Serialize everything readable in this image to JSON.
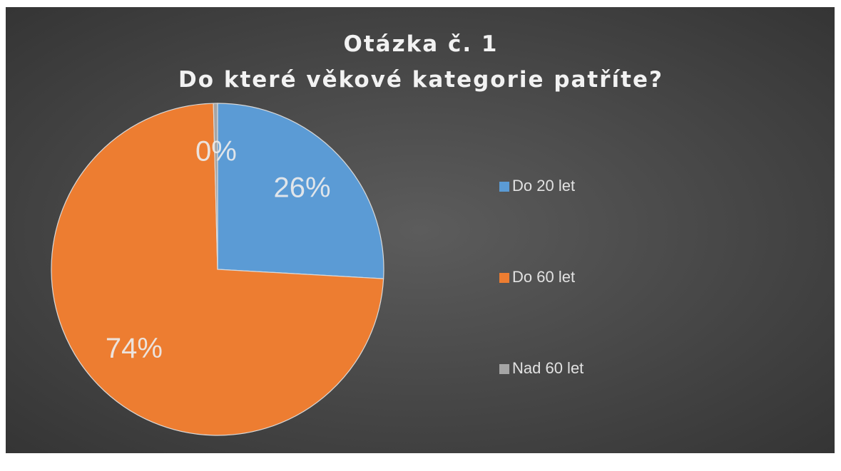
{
  "chart_data": {
    "type": "pie",
    "title": "Otázka č. 1",
    "subtitle": "Do které věkové kategorie patříte?",
    "categories": [
      "Do 20 let",
      "Do 60 let",
      "Nad 60 let"
    ],
    "values": [
      26,
      74,
      0.4
    ],
    "value_labels": [
      "26%",
      "74%",
      "0%"
    ],
    "colors": [
      "#5b9bd5",
      "#ed7d31",
      "#a5a5a5"
    ],
    "legend": "right"
  }
}
